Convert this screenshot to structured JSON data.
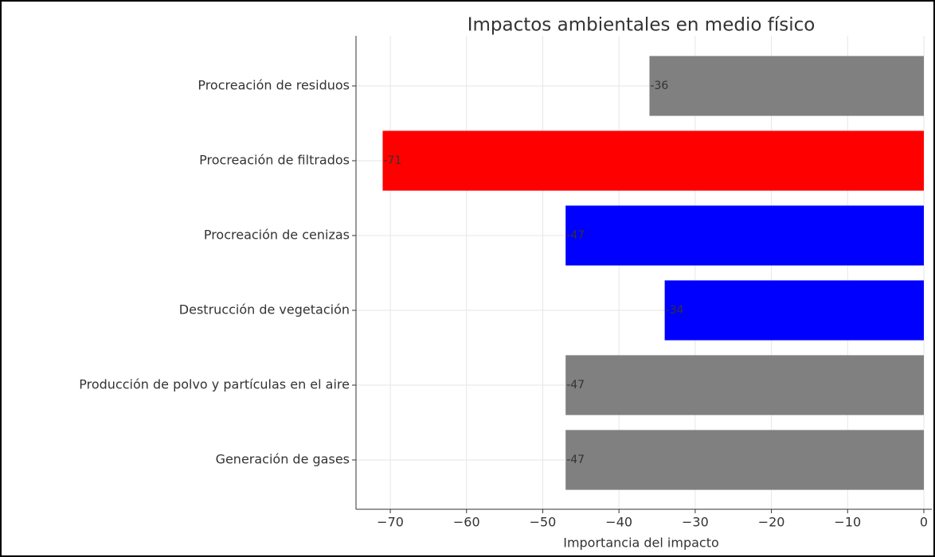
{
  "chart_data": {
    "type": "barh",
    "title": "Impactos ambientales en medio físico",
    "xlabel": "Importancia del impacto",
    "categories": [
      "Procreación de residuos",
      "Procreación de filtrados",
      "Procreación de cenizas",
      "Destrucción de vegetación",
      "Producción de polvo y partículas en el aire",
      "Generación de gases"
    ],
    "values": [
      -36,
      -71,
      -47,
      -34,
      -47,
      -47
    ],
    "colors": [
      "#808080",
      "#ff0000",
      "#0000ff",
      "#0000ff",
      "#808080",
      "#808080"
    ],
    "xlim": [
      -74.5,
      0
    ],
    "xticks": [
      {
        "value": -70,
        "label": "−70"
      },
      {
        "value": -60,
        "label": "−60"
      },
      {
        "value": -50,
        "label": "−50"
      },
      {
        "value": -40,
        "label": "−40"
      },
      {
        "value": -30,
        "label": "−30"
      },
      {
        "value": -20,
        "label": "−20"
      },
      {
        "value": -10,
        "label": "−10"
      },
      0
    ],
    "grid": true
  }
}
